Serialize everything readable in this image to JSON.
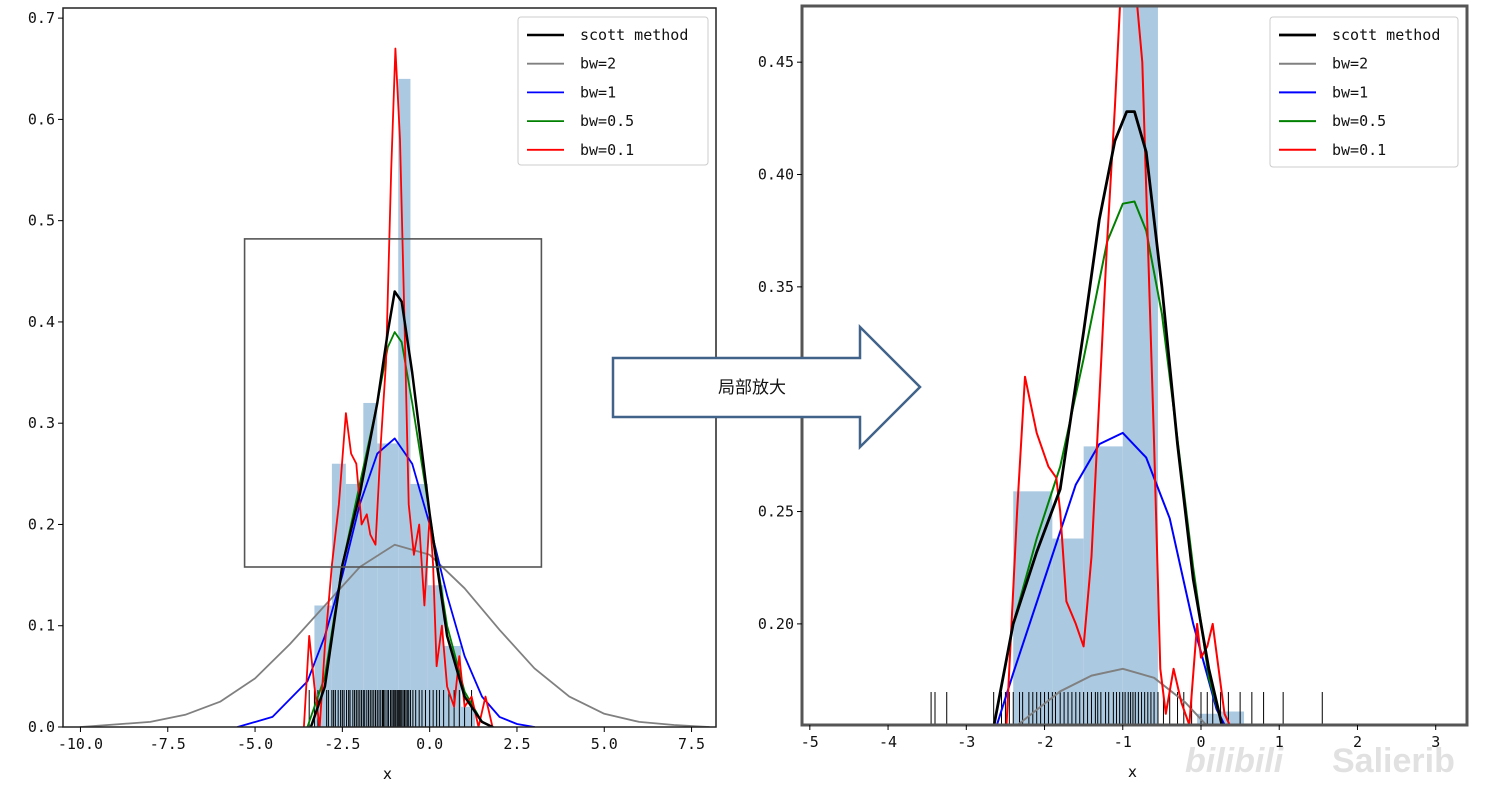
{
  "callout": {
    "text": "局部放大"
  },
  "watermark": {
    "text": "Salierib",
    "logo_text": "bilibili"
  },
  "colors": {
    "hist": "#a7c7e0",
    "scott": "#000000",
    "bw2": "#808080",
    "bw1": "#0000ff",
    "bw05": "#008000",
    "bw01": "#ff0000",
    "arrow": "#41638a"
  },
  "chart_data": [
    {
      "type": "line",
      "xlabel": "x",
      "ylabel": "",
      "xlim": [
        -10.5,
        8.2
      ],
      "ylim": [
        0,
        0.71
      ],
      "xticks": [
        "-10.0",
        "-7.5",
        "-5.0",
        "-2.5",
        "0.0",
        "2.5",
        "5.0",
        "7.5"
      ],
      "xtick_values": [
        -10,
        -7.5,
        -5,
        -2.5,
        0,
        2.5,
        5,
        7.5
      ],
      "yticks": [
        "0.0",
        "0.1",
        "0.2",
        "0.3",
        "0.4",
        "0.5",
        "0.6",
        "0.7"
      ],
      "ytick_values": [
        0,
        0.1,
        0.2,
        0.3,
        0.4,
        0.5,
        0.6,
        0.7
      ],
      "legend_position": "top-right",
      "zoom_box": {
        "x": [
          -5.3,
          3.2
        ],
        "y": [
          0.158,
          0.482
        ]
      },
      "histogram": {
        "bin_edges": [
          -3.3,
          -2.8,
          -2.4,
          -1.9,
          -1.5,
          -0.9,
          -0.55,
          -0.05,
          0.4,
          0.9,
          1.3
        ],
        "heights": [
          0.12,
          0.26,
          0.24,
          0.32,
          0.28,
          0.64,
          0.24,
          0.14,
          0.08,
          0.02
        ]
      },
      "series": [
        {
          "name": "scott method",
          "color": "#000000",
          "width": 2.5,
          "x": [
            -3.4,
            -3.0,
            -2.5,
            -2.0,
            -1.5,
            -1.2,
            -1.0,
            -0.8,
            -0.5,
            0.0,
            0.5,
            1.0,
            1.5,
            1.8
          ],
          "y": [
            0.0,
            0.04,
            0.16,
            0.23,
            0.32,
            0.39,
            0.43,
            0.42,
            0.35,
            0.21,
            0.09,
            0.03,
            0.005,
            0.0
          ]
        },
        {
          "name": "bw=2",
          "color": "#808080",
          "width": 1.8,
          "x": [
            -10.0,
            -8.0,
            -7.0,
            -6.0,
            -5.0,
            -4.0,
            -3.0,
            -2.0,
            -1.0,
            0.0,
            1.0,
            2.0,
            3.0,
            4.0,
            5.0,
            6.0,
            7.0,
            8.0
          ],
          "y": [
            0.0,
            0.005,
            0.012,
            0.025,
            0.048,
            0.082,
            0.12,
            0.158,
            0.18,
            0.17,
            0.137,
            0.096,
            0.058,
            0.03,
            0.013,
            0.005,
            0.002,
            0.0
          ]
        },
        {
          "name": "bw=1",
          "color": "#0000ff",
          "width": 1.8,
          "x": [
            -5.5,
            -4.5,
            -3.5,
            -3.0,
            -2.5,
            -2.0,
            -1.5,
            -1.0,
            -0.5,
            0.0,
            0.5,
            1.0,
            1.5,
            2.0,
            2.5,
            3.0
          ],
          "y": [
            0.0,
            0.01,
            0.045,
            0.09,
            0.15,
            0.22,
            0.27,
            0.285,
            0.26,
            0.2,
            0.13,
            0.07,
            0.03,
            0.01,
            0.003,
            0.0
          ]
        },
        {
          "name": "bw=0.5",
          "color": "#008000",
          "width": 1.8,
          "x": [
            -3.5,
            -3.0,
            -2.5,
            -2.0,
            -1.5,
            -1.2,
            -1.0,
            -0.8,
            -0.5,
            0.0,
            0.5,
            1.0,
            1.5,
            1.8
          ],
          "y": [
            0.0,
            0.05,
            0.16,
            0.24,
            0.32,
            0.375,
            0.39,
            0.38,
            0.32,
            0.21,
            0.1,
            0.035,
            0.005,
            0.0
          ]
        },
        {
          "name": "bw=0.1",
          "color": "#ff0000",
          "width": 1.8,
          "x": [
            -3.6,
            -3.45,
            -3.3,
            -3.15,
            -3.0,
            -2.8,
            -2.6,
            -2.4,
            -2.25,
            -2.1,
            -1.95,
            -1.8,
            -1.7,
            -1.55,
            -1.4,
            -1.25,
            -1.1,
            -0.98,
            -0.85,
            -0.72,
            -0.6,
            -0.45,
            -0.3,
            -0.15,
            0.0,
            0.1,
            0.2,
            0.35,
            0.5,
            0.7,
            0.85,
            1.0,
            1.2,
            1.4,
            1.6,
            1.8
          ],
          "y": [
            0.0,
            0.09,
            0.04,
            0.0,
            0.08,
            0.16,
            0.22,
            0.31,
            0.27,
            0.26,
            0.2,
            0.21,
            0.19,
            0.18,
            0.28,
            0.36,
            0.55,
            0.67,
            0.58,
            0.4,
            0.22,
            0.17,
            0.2,
            0.12,
            0.21,
            0.16,
            0.06,
            0.1,
            0.04,
            0.02,
            0.07,
            0.02,
            0.03,
            0.0,
            0.03,
            0.0
          ]
        }
      ],
      "rug": [
        -3.45,
        -3.3,
        -3.2,
        -2.95,
        -2.9,
        -2.8,
        -2.75,
        -2.7,
        -2.62,
        -2.55,
        -2.5,
        -2.45,
        -2.38,
        -2.32,
        -2.28,
        -2.2,
        -2.15,
        -2.1,
        -2.05,
        -2.0,
        -1.95,
        -1.9,
        -1.86,
        -1.8,
        -1.75,
        -1.7,
        -1.65,
        -1.6,
        -1.55,
        -1.5,
        -1.45,
        -1.4,
        -1.35,
        -1.32,
        -1.28,
        -1.22,
        -1.18,
        -1.12,
        -1.08,
        -1.04,
        -1.0,
        -0.97,
        -0.93,
        -0.9,
        -0.87,
        -0.84,
        -0.8,
        -0.76,
        -0.72,
        -0.68,
        -0.64,
        -0.6,
        -0.55,
        -0.48,
        -0.4,
        -0.3,
        -0.22,
        -0.12,
        0.0,
        0.1,
        0.2,
        0.28,
        0.4,
        0.55,
        0.7,
        0.85,
        1.0,
        1.2
      ]
    },
    {
      "type": "line",
      "xlabel": "x",
      "ylabel": "",
      "xlim": [
        -5.1,
        3.4
      ],
      "ylim": [
        0.155,
        0.475
      ],
      "xticks": [
        "-5",
        "-4",
        "-3",
        "-2",
        "-1",
        "0",
        "1",
        "2",
        "3"
      ],
      "xtick_values": [
        -5,
        -4,
        -3,
        -2,
        -1,
        0,
        1,
        2,
        3
      ],
      "yticks": [
        "0.20",
        "0.25",
        "0.30",
        "0.35",
        "0.40",
        "0.45"
      ],
      "ytick_values": [
        0.2,
        0.25,
        0.3,
        0.35,
        0.4,
        0.45
      ],
      "legend_position": "top-right",
      "histogram": {
        "bin_edges": [
          -2.4,
          -1.9,
          -1.5,
          -1.0,
          -0.55,
          -0.05,
          0.25,
          0.55
        ],
        "heights": [
          0.259,
          0.238,
          0.279,
          0.64,
          0.15,
          0.16,
          0.161
        ]
      },
      "series": [
        {
          "name": "scott method",
          "color": "#000000",
          "width": 2.8,
          "x": [
            -2.7,
            -2.4,
            -2.1,
            -1.8,
            -1.5,
            -1.3,
            -1.1,
            -0.95,
            -0.85,
            -0.7,
            -0.5,
            -0.3,
            -0.1,
            0.1,
            0.3
          ],
          "y": [
            0.145,
            0.2,
            0.232,
            0.26,
            0.33,
            0.38,
            0.415,
            0.428,
            0.428,
            0.41,
            0.35,
            0.28,
            0.22,
            0.18,
            0.15
          ]
        },
        {
          "name": "bw=2",
          "color": "#808080",
          "width": 2.0,
          "x": [
            -2.7,
            -2.2,
            -1.8,
            -1.4,
            -1.0,
            -0.6,
            -0.2,
            0.2
          ],
          "y": [
            0.145,
            0.159,
            0.17,
            0.177,
            0.18,
            0.176,
            0.165,
            0.15
          ]
        },
        {
          "name": "bw=1",
          "color": "#0000ff",
          "width": 2.0,
          "x": [
            -2.7,
            -2.4,
            -2.0,
            -1.6,
            -1.3,
            -1.0,
            -0.7,
            -0.4,
            -0.1,
            0.2,
            0.45
          ],
          "y": [
            0.145,
            0.178,
            0.22,
            0.262,
            0.28,
            0.285,
            0.274,
            0.247,
            0.2,
            0.162,
            0.145
          ]
        },
        {
          "name": "bw=0.5",
          "color": "#008000",
          "width": 2.0,
          "x": [
            -2.7,
            -2.4,
            -2.1,
            -1.8,
            -1.5,
            -1.2,
            -1.0,
            -0.85,
            -0.7,
            -0.5,
            -0.3,
            -0.1,
            0.1,
            0.35
          ],
          "y": [
            0.145,
            0.2,
            0.238,
            0.27,
            0.318,
            0.37,
            0.387,
            0.388,
            0.375,
            0.338,
            0.282,
            0.225,
            0.176,
            0.145
          ]
        },
        {
          "name": "bw=0.1",
          "color": "#ff0000",
          "width": 2.0,
          "x": [
            -2.5,
            -2.35,
            -2.25,
            -2.1,
            -1.95,
            -1.85,
            -1.8,
            -1.72,
            -1.6,
            -1.5,
            -1.4,
            -1.3,
            -1.2,
            -1.1,
            -1.0,
            -0.95,
            -0.88,
            -0.75,
            -0.6,
            -0.52,
            -0.45,
            -0.35,
            -0.25,
            -0.15,
            -0.05,
            0.0,
            0.08,
            0.15,
            0.3,
            0.5
          ],
          "y": [
            0.145,
            0.25,
            0.31,
            0.285,
            0.27,
            0.265,
            0.25,
            0.21,
            0.2,
            0.19,
            0.23,
            0.3,
            0.37,
            0.43,
            0.5,
            0.55,
            0.5,
            0.45,
            0.28,
            0.18,
            0.16,
            0.18,
            0.165,
            0.155,
            0.2,
            0.185,
            0.19,
            0.2,
            0.16,
            0.145
          ]
        }
      ],
      "rug": [
        -3.45,
        -3.4,
        -3.25,
        -2.65,
        -2.55,
        -2.5,
        -2.45,
        -2.4,
        -2.32,
        -2.28,
        -2.2,
        -2.15,
        -2.1,
        -2.05,
        -2.0,
        -1.95,
        -1.9,
        -1.86,
        -1.8,
        -1.75,
        -1.7,
        -1.65,
        -1.6,
        -1.55,
        -1.5,
        -1.45,
        -1.4,
        -1.35,
        -1.32,
        -1.28,
        -1.22,
        -1.18,
        -1.12,
        -1.08,
        -1.04,
        -1.0,
        -0.97,
        -0.93,
        -0.9,
        -0.87,
        -0.84,
        -0.8,
        -0.76,
        -0.72,
        -0.68,
        -0.64,
        -0.6,
        -0.55,
        -0.48,
        -0.4,
        -0.3,
        -0.22,
        -0.12,
        0.0,
        0.08,
        0.15,
        0.25,
        0.35,
        0.5,
        0.65,
        0.8,
        1.05,
        1.55
      ]
    }
  ]
}
